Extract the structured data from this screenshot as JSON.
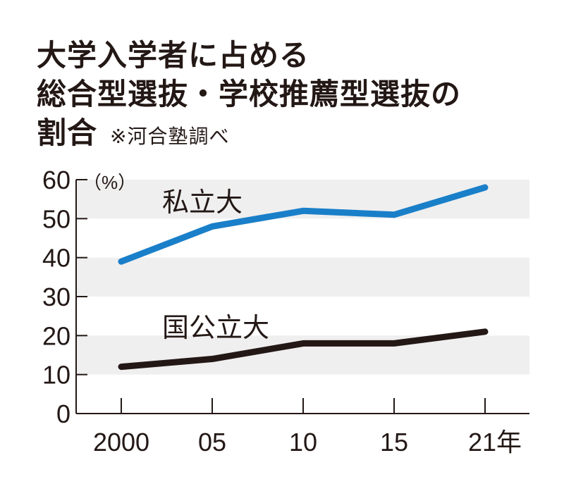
{
  "chart_data": {
    "type": "line",
    "title_lines": [
      "大学入学者に占める",
      "総合型選抜・学校推薦型選抜の",
      "割合"
    ],
    "note": "※河合塾調べ",
    "ylabel": "（%）",
    "categories": [
      "2000",
      "05",
      "10",
      "15",
      "21年"
    ],
    "ylim": [
      0,
      60
    ],
    "yticks": [
      "0",
      "10",
      "20",
      "30",
      "40",
      "50",
      "60"
    ],
    "grid": "alternating bands",
    "series": [
      {
        "name": "私立大",
        "color": "#1a7fc9",
        "values": [
          39,
          48,
          52,
          51,
          58
        ]
      },
      {
        "name": "国公立大",
        "color": "#231815",
        "values": [
          12,
          14,
          18,
          18,
          21
        ]
      }
    ]
  }
}
